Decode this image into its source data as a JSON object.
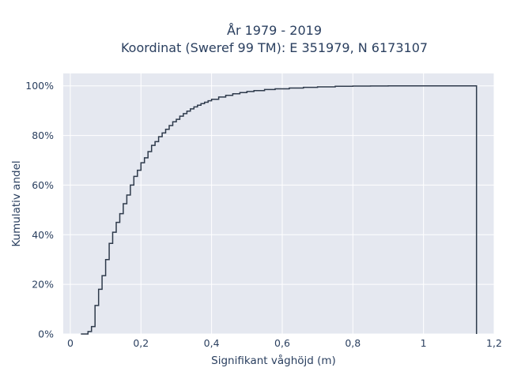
{
  "chart_data": {
    "type": "line",
    "title_line1": "År 1979 - 2019",
    "title_line2": "Koordinat (Sweref 99 TM): E 351979, N 6173107",
    "xlabel": "Signifikant våghöjd (m)",
    "ylabel": "Kumulativ andel",
    "xlim": [
      -0.02,
      1.2
    ],
    "ylim": [
      0,
      1.05
    ],
    "x_ticks": [
      0,
      0.2,
      0.4,
      0.6,
      0.8,
      1,
      1.2
    ],
    "x_tick_labels": [
      "0",
      "0,2",
      "0,4",
      "0,6",
      "0,8",
      "1",
      "1,2"
    ],
    "y_ticks": [
      0,
      0.2,
      0.4,
      0.6,
      0.8,
      1
    ],
    "y_tick_labels": [
      "0%",
      "20%",
      "40%",
      "60%",
      "80%",
      "100%"
    ],
    "grid": true,
    "line_color": "#2e3a4b",
    "background_color": "#e5e8f0",
    "series": [
      {
        "step": "post",
        "x": [
          0.03,
          0.05,
          0.06,
          0.07,
          0.08,
          0.09,
          0.1,
          0.11,
          0.12,
          0.13,
          0.14,
          0.15,
          0.16,
          0.17,
          0.18,
          0.19,
          0.2,
          0.21,
          0.22,
          0.23,
          0.24,
          0.25,
          0.26,
          0.27,
          0.28,
          0.29,
          0.3,
          0.31,
          0.32,
          0.33,
          0.34,
          0.35,
          0.36,
          0.37,
          0.38,
          0.39,
          0.4,
          0.42,
          0.44,
          0.46,
          0.48,
          0.5,
          0.52,
          0.55,
          0.58,
          0.62,
          0.66,
          0.7,
          0.75,
          0.8,
          0.85,
          0.9,
          1.0,
          1.1,
          1.15
        ],
        "y": [
          0.0,
          0.01,
          0.03,
          0.115,
          0.18,
          0.235,
          0.3,
          0.365,
          0.41,
          0.45,
          0.485,
          0.525,
          0.56,
          0.6,
          0.635,
          0.66,
          0.69,
          0.71,
          0.735,
          0.76,
          0.775,
          0.795,
          0.81,
          0.825,
          0.84,
          0.855,
          0.865,
          0.878,
          0.888,
          0.898,
          0.907,
          0.915,
          0.922,
          0.928,
          0.934,
          0.94,
          0.946,
          0.955,
          0.962,
          0.968,
          0.973,
          0.977,
          0.981,
          0.985,
          0.988,
          0.991,
          0.994,
          0.996,
          0.998,
          0.999,
          0.9995,
          1.0,
          1.0,
          1.0,
          0.0
        ]
      }
    ]
  }
}
